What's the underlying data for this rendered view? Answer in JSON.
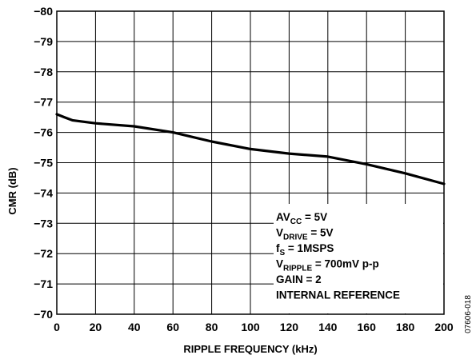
{
  "chart_data": {
    "type": "line",
    "xlabel": "RIPPLE FREQUENCY (kHz)",
    "ylabel": "CMR (dB)",
    "xlim": [
      0,
      200
    ],
    "ylim": [
      -70,
      -80
    ],
    "y_axis_inverted": true,
    "grid": true,
    "x_ticks": [
      0,
      20,
      40,
      60,
      80,
      100,
      120,
      140,
      160,
      180,
      200
    ],
    "y_ticks": [
      -80,
      -79,
      -78,
      -77,
      -76,
      -75,
      -74,
      -73,
      -72,
      -71,
      -70
    ],
    "series": [
      {
        "x": [
          0,
          4,
          8,
          20,
          40,
          60,
          80,
          100,
          120,
          140,
          160,
          180,
          200
        ],
        "y": [
          -76.6,
          -76.5,
          -76.4,
          -76.3,
          -76.2,
          -76.0,
          -75.7,
          -75.45,
          -75.3,
          -75.2,
          -74.95,
          -74.65,
          -74.3
        ],
        "color": "#000000"
      }
    ],
    "annotation": {
      "lines": [
        {
          "main": "AV",
          "sub": "CC",
          "rest": " = 5V"
        },
        {
          "main": "V",
          "sub": "DRIVE",
          "rest": " = 5V"
        },
        {
          "main": "f",
          "sub": "S",
          "rest": " = 1MSPS"
        },
        {
          "main": "V",
          "sub": "RIPPLE",
          "rest": " = 700mV p-p"
        },
        {
          "main": "GAIN = 2",
          "sub": "",
          "rest": ""
        },
        {
          "main": "INTERNAL REFERENCE",
          "sub": "",
          "rest": ""
        }
      ]
    },
    "figure_id": "07606-018"
  }
}
